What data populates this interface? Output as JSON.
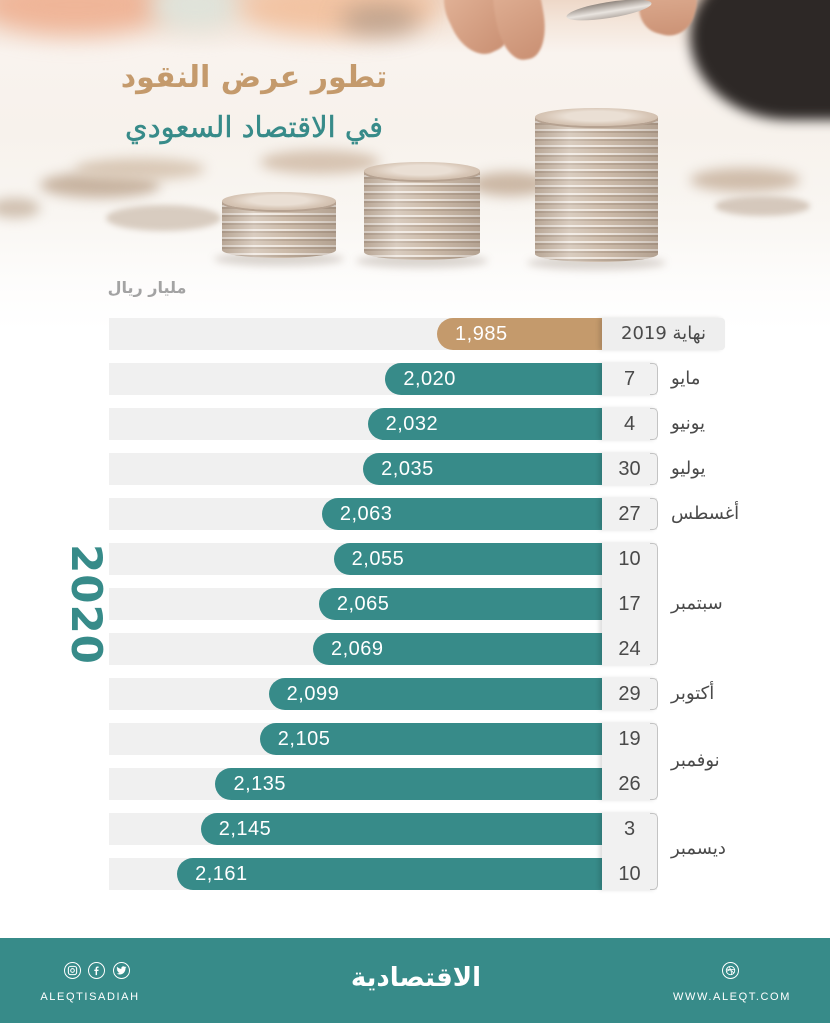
{
  "header": {
    "title_line1": "تطور عرض النقود",
    "title_line2": "في الاقتصاد السعودي",
    "unit_label": "مليار ريال"
  },
  "year_label": "2020",
  "rows": [
    {
      "label": "نهاية 2019",
      "day": "",
      "value": "1,985",
      "amount": 1985
    },
    {
      "day": "7",
      "value": "2,020",
      "amount": 2020
    },
    {
      "day": "4",
      "value": "2,032",
      "amount": 2032
    },
    {
      "day": "30",
      "value": "2,035",
      "amount": 2035
    },
    {
      "day": "27",
      "value": "2,063",
      "amount": 2063
    },
    {
      "day": "10",
      "value": "2,055",
      "amount": 2055
    },
    {
      "day": "17",
      "value": "2,065",
      "amount": 2065
    },
    {
      "day": "24",
      "value": "2,069",
      "amount": 2069
    },
    {
      "day": "29",
      "value": "2,099",
      "amount": 2099
    },
    {
      "day": "19",
      "value": "2,105",
      "amount": 2105
    },
    {
      "day": "26",
      "value": "2,135",
      "amount": 2135
    },
    {
      "day": "3",
      "value": "2,145",
      "amount": 2145
    },
    {
      "day": "10",
      "value": "2,161",
      "amount": 2161
    }
  ],
  "months": [
    {
      "label": "مايو",
      "rows": [
        1
      ]
    },
    {
      "label": "يونيو",
      "rows": [
        2
      ]
    },
    {
      "label": "يوليو",
      "rows": [
        3
      ]
    },
    {
      "label": "أغسطس",
      "rows": [
        4
      ]
    },
    {
      "label": "سبتمبر",
      "rows": [
        5,
        6,
        7
      ]
    },
    {
      "label": "أكتوبر",
      "rows": [
        8
      ]
    },
    {
      "label": "نوفمبر",
      "rows": [
        9,
        10
      ]
    },
    {
      "label": "ديسمبر",
      "rows": [
        11,
        12
      ]
    }
  ],
  "colors": {
    "teal": "#378b89",
    "tan": "#c49a6c",
    "track": "#f0f0f0",
    "text": "#4a4a4a"
  },
  "footer": {
    "social_icons": [
      "instagram-icon",
      "facebook-icon",
      "twitter-icon"
    ],
    "social_handle": "ALEQTISADIAH",
    "logo_text": "الاقتصادية",
    "website_icon": "web-icon",
    "website": "WWW.ALEQT.COM"
  },
  "chart_data": {
    "type": "bar",
    "orientation": "horizontal",
    "title": "تطور عرض النقود في الاقتصاد السعودي",
    "xlabel": "",
    "ylabel": "مليار ريال",
    "group_label": "2020",
    "categories": [
      "نهاية 2019",
      "7 مايو",
      "4 يونيو",
      "30 يوليو",
      "27 أغسطس",
      "10 سبتمبر",
      "17 سبتمبر",
      "24 سبتمبر",
      "29 أكتوبر",
      "19 نوفمبر",
      "26 نوفمبر",
      "3 ديسمبر",
      "10 ديسمبر"
    ],
    "values": [
      1985,
      2020,
      2032,
      2035,
      2063,
      2055,
      2065,
      2069,
      2099,
      2105,
      2135,
      2145,
      2161
    ],
    "data_labels": [
      "1,985",
      "2,020",
      "2,032",
      "2,035",
      "2,063",
      "2,055",
      "2,065",
      "2,069",
      "2,099",
      "2,105",
      "2,135",
      "2,145",
      "2,161"
    ],
    "bar_colors": [
      "#c49a6c",
      "#378b89",
      "#378b89",
      "#378b89",
      "#378b89",
      "#378b89",
      "#378b89",
      "#378b89",
      "#378b89",
      "#378b89",
      "#378b89",
      "#378b89",
      "#378b89"
    ],
    "grid": false,
    "legend": null
  }
}
